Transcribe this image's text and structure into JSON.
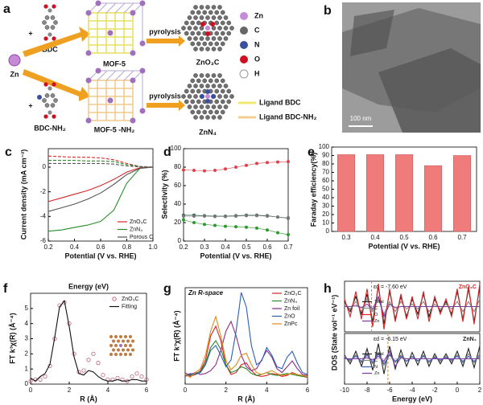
{
  "figure": {
    "a": {
      "label": "a",
      "zn": "Zn",
      "bdc": "BDC",
      "bdc_nh2": "BDC-NH₂",
      "plus": [
        "+",
        "+"
      ],
      "mof5": "MOF-5",
      "mof5_nh2": "MOF-5 -NH₂",
      "pyrolysis": [
        "pyrolysis",
        "pyrolysis"
      ],
      "product_1": "ZnO₃C",
      "product_2": "ZnN₄",
      "legend": [
        "Zn",
        "C",
        "N",
        "O",
        "H"
      ],
      "ligand_legend": [
        "Ligand BDC",
        "Ligand BDC-NH₂"
      ]
    },
    "b": {
      "label": "b",
      "scale_bar": "100 nm"
    }
  },
  "chart_data": [
    {
      "type": "line",
      "panel_label": "c",
      "xlabel": "Potential (V vs. RHE)",
      "ylabel": "Current density (mA cm⁻²)",
      "x": [
        0.2,
        0.3,
        0.4,
        0.5,
        0.6,
        0.7,
        0.8,
        0.9,
        1.0
      ],
      "xlim": [
        0.2,
        1.0
      ],
      "xticks": [
        0.2,
        0.4,
        0.6,
        0.8,
        {
          "value": 1,
          "label": "1.0"
        }
      ],
      "ylim": [
        -6,
        1.5
      ],
      "yticks": [
        -6,
        -4,
        -2,
        0
      ],
      "legend": "lower right",
      "series": [
        {
          "name": "ZnO₃C",
          "color": "#d62728",
          "values": [
            -2.8,
            -2.5,
            -2.2,
            -1.9,
            -1.5,
            -1.0,
            -0.4,
            -0.05,
            0
          ]
        },
        {
          "name": "ZnN₄",
          "color": "#2a8a2a",
          "values": [
            -5.2,
            -5.1,
            -4.9,
            -4.7,
            -4.4,
            -3.5,
            -1.3,
            -0.1,
            0
          ]
        },
        {
          "name": "Porous C",
          "color": "#555555",
          "values": [
            -3.6,
            -3.3,
            -3.0,
            -2.6,
            -2.1,
            -1.4,
            -0.6,
            -0.1,
            0
          ]
        },
        {
          "color": "#d62728",
          "dashed": true,
          "values": [
            0.9,
            0.85,
            0.8,
            0.8,
            0.75,
            0.6,
            0.3,
            0.05,
            0
          ]
        },
        {
          "color": "#2a8a2a",
          "dashed": true,
          "values": [
            0.55,
            0.55,
            0.55,
            0.5,
            0.5,
            0.45,
            0.2,
            0.05,
            0
          ]
        },
        {
          "color": "#555555",
          "dashed": true,
          "values": [
            0.3,
            0.3,
            0.3,
            0.3,
            0.3,
            0.25,
            0.1,
            0.02,
            0
          ]
        }
      ]
    },
    {
      "type": "line",
      "panel_label": "d",
      "xlabel": "Potential (V vs. RHE)",
      "ylabel": "Selectivity (%)",
      "x": [
        0.2,
        0.25,
        0.3,
        0.35,
        0.4,
        0.45,
        0.5,
        0.55,
        0.6,
        0.65,
        0.7
      ],
      "xlim": [
        0.2,
        0.7
      ],
      "xticks": [
        0.2,
        0.3,
        0.4,
        0.5,
        0.6,
        0.7
      ],
      "ylim": [
        0,
        100
      ],
      "yticks": [
        0,
        20,
        40,
        60,
        80,
        100
      ],
      "series": [
        {
          "color": "#e0404a",
          "marker": "filled",
          "values": [
            77,
            76.5,
            76,
            76.5,
            78,
            80,
            82,
            84,
            85,
            85.5,
            86
          ]
        },
        {
          "color": "#2f5f4f",
          "marker": "filled",
          "values": [
            28,
            28,
            27.5,
            27,
            27,
            27.5,
            28,
            28,
            27.5,
            26,
            25
          ]
        },
        {
          "color": "#777777",
          "marker": "filled",
          "values": [
            27,
            27,
            27,
            26.5,
            26.5,
            27,
            27.5,
            27.5,
            27,
            26,
            24.5
          ]
        },
        {
          "color": "#2a9a2a",
          "marker": "filled",
          "values": [
            23,
            20,
            18,
            17,
            16,
            15.5,
            15,
            14,
            12,
            9,
            7
          ]
        }
      ]
    },
    {
      "type": "bar",
      "panel_label": "e",
      "xlabel": "Potential (V vs. RHE)",
      "ylabel": "Faraday efficiency(%)",
      "categories": [
        "0.3",
        "0.4",
        "0.5",
        "0.6",
        "0.7"
      ],
      "values": [
        91,
        91,
        91,
        78,
        90
      ],
      "color": "#f07b7b",
      "ylim": [
        0,
        100
      ],
      "yticks": [
        0,
        10,
        20,
        30,
        40,
        50,
        60,
        70,
        80,
        90,
        100
      ]
    },
    {
      "type": "line",
      "panel_label": "f",
      "title": "Energy (eV)",
      "xlabel": "R (Å)",
      "ylabel": "FT k³χ(R) (Å⁻⁴)",
      "x": [
        0,
        0.25,
        0.5,
        0.75,
        1,
        1.25,
        1.5,
        1.75,
        2,
        2.25,
        2.5,
        2.75,
        3,
        3.25,
        3.5,
        3.75,
        4,
        4.25,
        4.5,
        4.75,
        5,
        5.25,
        5.5,
        5.75,
        6
      ],
      "xlim": [
        0,
        6
      ],
      "xticks": [
        0,
        2,
        4,
        6
      ],
      "ylim": [
        0,
        6
      ],
      "yticks": [
        0,
        1,
        2,
        3,
        4,
        5
      ],
      "legend": "upper right",
      "series": [
        {
          "name": "ZnO₃C",
          "color": "#c0607a",
          "marker": "open",
          "line": false,
          "values": [
            0.2,
            0.3,
            0.3,
            0.5,
            1.2,
            3.0,
            5.2,
            5.4,
            4.0,
            2.0,
            0.8,
            0.9,
            1.6,
            2.0,
            1.4,
            0.6,
            0.3,
            0.3,
            0.4,
            0.3,
            0.2,
            0.5,
            0.7,
            0.5,
            0.3
          ]
        },
        {
          "name": "Fitting",
          "color": "#111111",
          "values": [
            0.4,
            0.2,
            0.5,
            0.7,
            1.3,
            3.1,
            5.1,
            5.5,
            3.8,
            1.8,
            0.7,
            0.6,
            0.9,
            0.8,
            0.5,
            0.3,
            0.2,
            0.2,
            0.3,
            0.2,
            0.2,
            0.3,
            0.3,
            0.2,
            0.2
          ]
        }
      ]
    },
    {
      "type": "line",
      "panel_label": "g",
      "title": "Zn R-space",
      "xlabel": "R (Å)",
      "ylabel": "FT k³χ(R) (Å⁻⁴)",
      "x": [
        0,
        0.25,
        0.5,
        0.75,
        1,
        1.25,
        1.5,
        1.75,
        2,
        2.25,
        2.5,
        2.75,
        3,
        3.25,
        3.5,
        3.75,
        4,
        4.25,
        4.5,
        4.75,
        5,
        5.25,
        5.5,
        5.75,
        6
      ],
      "xlim": [
        0,
        6
      ],
      "xticks": [
        0,
        2,
        4,
        6
      ],
      "ylim": [
        0,
        10
      ],
      "legend": "upper right",
      "series": [
        {
          "name": "ZnO₃C",
          "color": "#d62728",
          "values": [
            1.2,
            0.8,
            1.0,
            1.4,
            2.5,
            5.0,
            6.0,
            4.5,
            2.0,
            1.0,
            1.2,
            2.0,
            2.2,
            1.4,
            0.9,
            0.8,
            0.9,
            1.1,
            1.0,
            0.8,
            0.9,
            1.2,
            1.0,
            0.8,
            0.7
          ]
        },
        {
          "name": "ZnN₄",
          "color": "#2a8a2a",
          "values": [
            1.0,
            0.9,
            1.1,
            1.3,
            2.2,
            3.8,
            4.5,
            3.6,
            2.0,
            1.2,
            1.4,
            1.8,
            1.6,
            1.1,
            0.9,
            1.0,
            1.2,
            1.0,
            0.9,
            1.0,
            1.1,
            1.0,
            0.9,
            0.8,
            0.8
          ]
        },
        {
          "name": "Zn foil",
          "color": "#8b2a8b",
          "values": [
            0.8,
            1.0,
            1.2,
            1.0,
            1.1,
            1.4,
            2.0,
            3.5,
            5.5,
            6.5,
            5.0,
            3.0,
            1.8,
            1.4,
            1.6,
            2.5,
            3.5,
            2.8,
            1.6,
            1.2,
            1.8,
            2.4,
            1.6,
            1.0,
            0.9
          ]
        },
        {
          "name": "ZnO",
          "color": "#2b5fb0",
          "values": [
            0.9,
            1.1,
            1.0,
            1.2,
            2.0,
            3.5,
            4.0,
            3.0,
            1.8,
            2.5,
            5.5,
            9.5,
            8.0,
            4.0,
            2.0,
            2.4,
            3.8,
            3.0,
            1.8,
            1.6,
            2.8,
            3.4,
            2.2,
            1.2,
            1.0
          ]
        },
        {
          "name": "ZnPc",
          "color": "#e08a1a",
          "values": [
            1.0,
            0.7,
            1.2,
            1.6,
            3.0,
            5.5,
            7.0,
            5.0,
            2.4,
            1.5,
            2.0,
            3.0,
            3.2,
            2.0,
            1.2,
            1.0,
            1.2,
            1.4,
            1.1,
            0.9,
            1.0,
            1.1,
            1.0,
            0.9,
            0.8
          ]
        }
      ]
    },
    {
      "type": "line",
      "panel_label": "h",
      "ylabel": "DOS (State vol⁻¹ eV⁻¹)",
      "x": [
        -10,
        -9.5,
        -9,
        -8.5,
        -8,
        -7.5,
        -7,
        -6.5,
        -6,
        -5.5,
        -5,
        -4.5,
        -4,
        -3.5,
        -3,
        -2.5,
        -2,
        -1.5,
        -1,
        -0.5,
        0,
        0.5,
        1,
        1.5,
        2
      ],
      "xlim": [
        -10,
        2
      ],
      "ylim": [
        -1,
        1
      ],
      "legend": "center left",
      "d_band_center": {
        "value": -7.6,
        "label": "εd = -7.60 eV"
      },
      "tag": "ZnO₃C",
      "tag_color": "#d62728",
      "series": [
        {
          "name": "Total",
          "color": "#222222",
          "values": [
            0.2,
            -0.2,
            0.4,
            -0.3,
            0.5,
            -0.6,
            0.8,
            -0.7,
            0.6,
            -0.5,
            0.4,
            -0.4,
            0.3,
            -0.3,
            0.5,
            -0.4,
            0.3,
            -0.2,
            0.2,
            -0.3,
            0.6,
            -0.5,
            0.7,
            -0.6,
            0.8
          ]
        },
        {
          "name": "C",
          "color": "#888888",
          "values": [
            0.1,
            -0.1,
            0.2,
            -0.2,
            0.3,
            -0.2,
            0.3,
            -0.3,
            0.2,
            -0.2,
            0.2,
            -0.1,
            0.1,
            -0.1,
            0.2,
            -0.2,
            0.1,
            -0.1,
            0.1,
            -0.1,
            0.2,
            -0.2,
            0.2,
            -0.2,
            0.3
          ]
        },
        {
          "name": "O",
          "color": "#d62728",
          "values": [
            0.3,
            -0.4,
            0.6,
            -0.5,
            0.7,
            -0.8,
            0.9,
            -0.9,
            0.7,
            -0.6,
            0.5,
            -0.5,
            0.4,
            -0.5,
            0.6,
            -0.6,
            0.4,
            -0.3,
            0.3,
            -0.4,
            0.7,
            -0.6,
            0.8,
            -0.7,
            0.9
          ]
        },
        {
          "name": "Zn",
          "color": "#7a3a9a",
          "values": [
            0,
            0,
            0.05,
            -0.05,
            0.1,
            -0.1,
            0.4,
            -0.4,
            0.1,
            -0.05,
            0,
            0,
            0,
            0,
            0,
            0,
            0,
            0,
            0,
            0,
            0,
            0,
            0,
            0,
            0
          ]
        }
      ]
    },
    {
      "type": "line",
      "xlabel": "Energy (eV)",
      "x": [
        -10,
        -9.5,
        -9,
        -8.5,
        -8,
        -7.5,
        -7,
        -6.5,
        -6,
        -5.5,
        -5,
        -4.5,
        -4,
        -3.5,
        -3,
        -2.5,
        -2,
        -1.5,
        -1,
        -0.5,
        0,
        0.5,
        1,
        1.5,
        2
      ],
      "xlim": [
        -10,
        2
      ],
      "xticks": [
        -10,
        -8,
        -6,
        -4,
        -2,
        0,
        2
      ],
      "ylim": [
        -1,
        1
      ],
      "legend": "center left",
      "d_band_center": {
        "value": -6.15,
        "label": "εd = -6.15 eV"
      },
      "tag": "ZnN₄",
      "tag_color": "#222222",
      "series": [
        {
          "name": "Total",
          "color": "#222222",
          "values": [
            0.15,
            -0.2,
            0.3,
            -0.3,
            0.4,
            -0.45,
            0.6,
            -0.6,
            0.5,
            -0.4,
            0.35,
            -0.3,
            0.25,
            -0.25,
            0.3,
            -0.3,
            0.2,
            -0.2,
            0.2,
            -0.2,
            0.3,
            -0.3,
            0.4,
            -0.35,
            0.5
          ]
        },
        {
          "name": "C",
          "color": "#888888",
          "values": [
            0.1,
            -0.1,
            0.15,
            -0.15,
            0.2,
            -0.2,
            0.25,
            -0.25,
            0.2,
            -0.15,
            0.15,
            -0.1,
            0.1,
            -0.1,
            0.15,
            -0.15,
            0.1,
            -0.1,
            0.1,
            -0.1,
            0.15,
            -0.15,
            0.2,
            -0.15,
            0.2
          ]
        },
        {
          "name": "N",
          "color": "#3a5fb0",
          "values": [
            0.05,
            -0.05,
            0.1,
            -0.1,
            0.15,
            -0.15,
            0.2,
            -0.2,
            0.15,
            -0.1,
            0.1,
            -0.1,
            0.08,
            -0.08,
            0.1,
            -0.1,
            0.05,
            -0.05,
            0.05,
            -0.05,
            0.1,
            -0.1,
            0.1,
            -0.1,
            0.1
          ]
        },
        {
          "name": "Zn",
          "color": "#7a3a9a",
          "values": [
            0,
            0,
            0,
            0,
            0.05,
            -0.05,
            0.1,
            -0.1,
            0.3,
            -0.3,
            0.05,
            0,
            0,
            0,
            0,
            0,
            0,
            0,
            0,
            0,
            0,
            0,
            0,
            0,
            0
          ]
        }
      ]
    }
  ]
}
